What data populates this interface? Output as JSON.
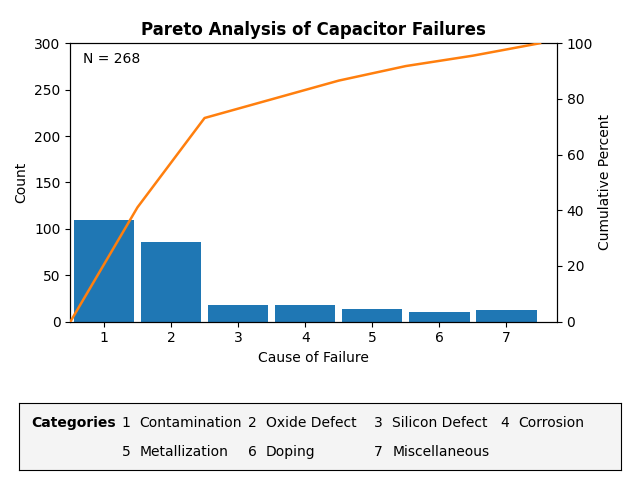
{
  "chart_data": {
    "type": "bar",
    "title": "Pareto Analysis of Capacitor Failures",
    "x_label": "Cause of Failure",
    "y_label": "Count",
    "y2_label": "Cumulative Percent",
    "xlim": [
      0.5,
      7.75
    ],
    "xticks": [
      1,
      2,
      3,
      4,
      5,
      6,
      7
    ],
    "ylim": [
      0,
      300
    ],
    "yticks": [
      0,
      50,
      100,
      150,
      200,
      250,
      300
    ],
    "y2lim": [
      0,
      100
    ],
    "y2ticks": [
      0,
      20,
      40,
      60,
      80,
      100
    ],
    "grid": false,
    "annotations": [
      {
        "text": "N = 268"
      }
    ],
    "category_key": {
      "title": "Categories",
      "names": [
        "Contamination",
        "Oxide Defect",
        "Silicon Defect",
        "Corrosion",
        "Metallization",
        "Doping",
        "Miscellaneous"
      ]
    },
    "series": [
      {
        "type": "bar",
        "x": [
          1,
          2,
          3,
          4,
          5,
          6,
          7
        ],
        "values": [
          110,
          86,
          18,
          18,
          14,
          10,
          12
        ]
      },
      {
        "type": "line",
        "axis": "y2",
        "x": [
          0.5,
          1.5,
          2.5,
          3.5,
          4.5,
          5.5,
          6.5,
          7.5
        ],
        "values": [
          0,
          41.04477611940298,
          73.13432835820896,
          79.85074626865672,
          86.56716417910448,
          91.7910447761194,
          95.52238805970148,
          100.0
        ]
      }
    ]
  }
}
